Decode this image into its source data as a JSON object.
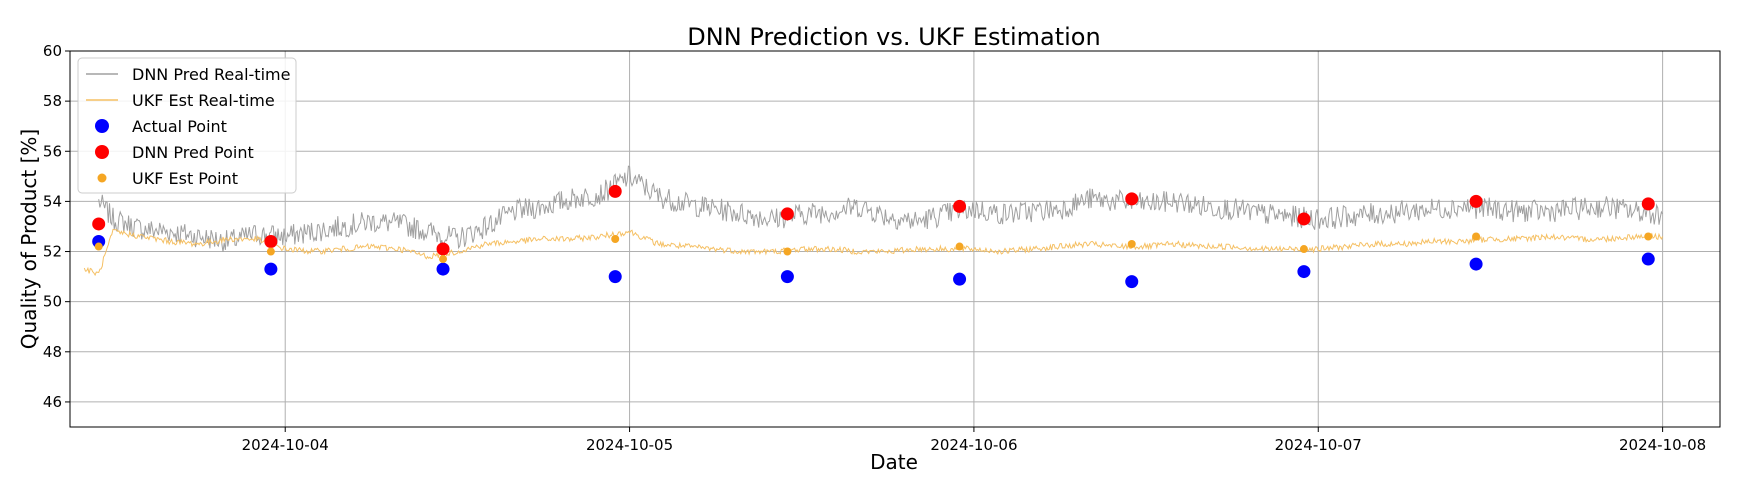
{
  "chart_data": {
    "type": "line",
    "title": "DNN Prediction vs. UKF Estimation",
    "xlabel": "Date",
    "ylabel": "Quality of Product [%]",
    "xlim": [
      "2024-10-03 09:00",
      "2024-10-08 04:00"
    ],
    "ylim": [
      45,
      60
    ],
    "x_ticks": [
      "2024-10-04",
      "2024-10-05",
      "2024-10-06",
      "2024-10-07",
      "2024-10-08"
    ],
    "y_ticks": [
      46,
      48,
      50,
      52,
      54,
      56,
      58,
      60
    ],
    "grid": true,
    "legend_position": "top-left",
    "series": [
      {
        "name": "DNN Pred Real-time",
        "kind": "line",
        "color": "#a0a0a0",
        "x": [
          "2024-10-03 11:00",
          "2024-10-03 12:00",
          "2024-10-03 14:00",
          "2024-10-03 16:00",
          "2024-10-03 18:00",
          "2024-10-03 20:00",
          "2024-10-03 22:00",
          "2024-10-04 00:00",
          "2024-10-04 02:00",
          "2024-10-04 04:00",
          "2024-10-04 06:00",
          "2024-10-04 08:00",
          "2024-10-04 10:00",
          "2024-10-04 12:00",
          "2024-10-04 14:00",
          "2024-10-04 16:00",
          "2024-10-04 18:00",
          "2024-10-04 20:00",
          "2024-10-04 22:00",
          "2024-10-05 00:00",
          "2024-10-05 02:00",
          "2024-10-05 04:00",
          "2024-10-05 06:00",
          "2024-10-05 08:00",
          "2024-10-05 10:00",
          "2024-10-05 12:00",
          "2024-10-05 14:00",
          "2024-10-05 16:00",
          "2024-10-05 18:00",
          "2024-10-05 20:00",
          "2024-10-05 22:00",
          "2024-10-06 00:00",
          "2024-10-06 02:00",
          "2024-10-06 04:00",
          "2024-10-06 06:00",
          "2024-10-06 08:00",
          "2024-10-06 10:00",
          "2024-10-06 12:00",
          "2024-10-06 14:00",
          "2024-10-06 16:00",
          "2024-10-06 18:00",
          "2024-10-06 20:00",
          "2024-10-06 22:00",
          "2024-10-07 00:00",
          "2024-10-07 02:00",
          "2024-10-07 04:00",
          "2024-10-07 06:00",
          "2024-10-07 08:00",
          "2024-10-07 10:00",
          "2024-10-07 12:00",
          "2024-10-07 14:00",
          "2024-10-07 16:00",
          "2024-10-07 18:00",
          "2024-10-07 20:00",
          "2024-10-07 22:00",
          "2024-10-08 00:00"
        ],
        "y": [
          54.0,
          53.3,
          52.9,
          52.8,
          52.6,
          52.4,
          52.7,
          52.6,
          52.8,
          53.0,
          53.2,
          53.1,
          52.8,
          52.5,
          53.0,
          53.6,
          53.8,
          54.1,
          54.3,
          55.0,
          54.2,
          53.9,
          53.7,
          53.5,
          53.3,
          53.5,
          53.6,
          53.8,
          53.4,
          53.2,
          53.5,
          53.7,
          53.5,
          53.6,
          53.7,
          54.1,
          54.0,
          53.9,
          54.0,
          53.8,
          53.7,
          53.5,
          53.4,
          53.3,
          53.4,
          53.5,
          53.6,
          53.7,
          53.8,
          53.7,
          53.6,
          53.6,
          53.7,
          53.8,
          53.6,
          53.5
        ]
      },
      {
        "name": "UKF Est Real-time",
        "kind": "line",
        "color": "#f5c064",
        "x": [
          "2024-10-03 10:00",
          "2024-10-03 11:00",
          "2024-10-03 12:00",
          "2024-10-03 14:00",
          "2024-10-03 16:00",
          "2024-10-03 18:00",
          "2024-10-03 20:00",
          "2024-10-03 22:00",
          "2024-10-04 00:00",
          "2024-10-04 02:00",
          "2024-10-04 04:00",
          "2024-10-04 06:00",
          "2024-10-04 08:00",
          "2024-10-04 10:00",
          "2024-10-04 12:00",
          "2024-10-04 14:00",
          "2024-10-04 16:00",
          "2024-10-04 18:00",
          "2024-10-04 20:00",
          "2024-10-04 22:00",
          "2024-10-05 00:00",
          "2024-10-05 02:00",
          "2024-10-05 04:00",
          "2024-10-05 06:00",
          "2024-10-05 08:00",
          "2024-10-05 10:00",
          "2024-10-05 12:00",
          "2024-10-05 14:00",
          "2024-10-05 16:00",
          "2024-10-05 18:00",
          "2024-10-05 20:00",
          "2024-10-05 22:00",
          "2024-10-06 00:00",
          "2024-10-06 02:00",
          "2024-10-06 04:00",
          "2024-10-06 06:00",
          "2024-10-06 08:00",
          "2024-10-06 10:00",
          "2024-10-06 12:00",
          "2024-10-06 14:00",
          "2024-10-06 16:00",
          "2024-10-06 18:00",
          "2024-10-06 20:00",
          "2024-10-06 22:00",
          "2024-10-07 00:00",
          "2024-10-07 02:00",
          "2024-10-07 04:00",
          "2024-10-07 06:00",
          "2024-10-07 08:00",
          "2024-10-07 10:00",
          "2024-10-07 12:00",
          "2024-10-07 14:00",
          "2024-10-07 16:00",
          "2024-10-07 18:00",
          "2024-10-07 20:00",
          "2024-10-07 22:00",
          "2024-10-08 00:00"
        ],
        "y": [
          51.3,
          51.1,
          52.8,
          52.6,
          52.4,
          52.3,
          52.5,
          52.5,
          52.1,
          52.0,
          52.1,
          52.2,
          52.1,
          51.8,
          52.0,
          52.3,
          52.4,
          52.5,
          52.5,
          52.6,
          52.8,
          52.3,
          52.2,
          52.1,
          52.0,
          52.0,
          52.1,
          52.1,
          52.0,
          52.0,
          52.1,
          52.1,
          52.1,
          52.0,
          52.1,
          52.2,
          52.3,
          52.2,
          52.2,
          52.3,
          52.2,
          52.2,
          52.1,
          52.1,
          52.1,
          52.2,
          52.3,
          52.3,
          52.4,
          52.4,
          52.5,
          52.5,
          52.6,
          52.5,
          52.5,
          52.6,
          52.6
        ]
      },
      {
        "name": "Actual Point",
        "kind": "points",
        "color": "#0000ff",
        "x": [
          "2024-10-03 11:00",
          "2024-10-03 23:00",
          "2024-10-04 11:00",
          "2024-10-04 23:00",
          "2024-10-05 11:00",
          "2024-10-05 23:00",
          "2024-10-06 11:00",
          "2024-10-06 23:00",
          "2024-10-07 11:00",
          "2024-10-07 23:00"
        ],
        "y": [
          52.4,
          51.3,
          51.3,
          51.0,
          51.0,
          50.9,
          50.8,
          51.2,
          51.5,
          51.7
        ]
      },
      {
        "name": "DNN Pred Point",
        "kind": "points",
        "color": "#ff0000",
        "x": [
          "2024-10-03 11:00",
          "2024-10-03 23:00",
          "2024-10-04 11:00",
          "2024-10-04 23:00",
          "2024-10-05 11:00",
          "2024-10-05 23:00",
          "2024-10-06 11:00",
          "2024-10-06 23:00",
          "2024-10-07 11:00",
          "2024-10-07 23:00"
        ],
        "y": [
          53.1,
          52.4,
          52.1,
          54.4,
          53.5,
          53.8,
          54.1,
          53.3,
          54.0,
          53.9
        ]
      },
      {
        "name": "UKF Est Point",
        "kind": "points",
        "color": "#f5a623",
        "x": [
          "2024-10-03 11:00",
          "2024-10-03 23:00",
          "2024-10-04 11:00",
          "2024-10-04 23:00",
          "2024-10-05 11:00",
          "2024-10-05 23:00",
          "2024-10-06 11:00",
          "2024-10-06 23:00",
          "2024-10-07 11:00",
          "2024-10-07 23:00"
        ],
        "y": [
          52.2,
          52.0,
          51.7,
          52.5,
          52.0,
          52.2,
          52.3,
          52.1,
          52.6,
          52.6
        ]
      }
    ]
  }
}
